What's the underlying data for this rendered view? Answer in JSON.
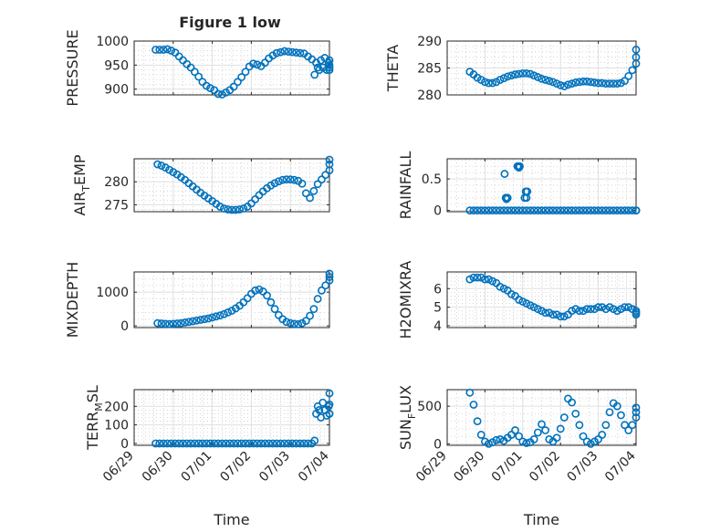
{
  "figure_title": "Figure 1 low",
  "x_tick_labels": [
    "06/29",
    "06/30",
    "07/01",
    "07/02",
    "07/03",
    "07/04"
  ],
  "xlabel": "Time",
  "colors": {
    "marker": "#0072bd",
    "axis": "#262626",
    "grid": "#dfdfdf",
    "background": "#ffffff"
  },
  "chart_data": [
    {
      "id": "pressure",
      "type": "scatter",
      "title": "Figure 1 low",
      "ylabel": "PRESSURE",
      "ylabel_sub": "",
      "ylabel_tail": "",
      "xlabel": "",
      "x_ticks_shown": false,
      "xlim": [
        0,
        5
      ],
      "ylim": [
        888,
        1000
      ],
      "yticks": [
        900,
        950,
        1000
      ],
      "ytick_labels": [
        "900",
        "950",
        "1000"
      ],
      "grid": true,
      "minor_grid": true,
      "x": [
        0.55,
        0.65,
        0.75,
        0.85,
        0.95,
        1.05,
        1.15,
        1.25,
        1.35,
        1.45,
        1.55,
        1.65,
        1.75,
        1.85,
        1.95,
        2.05,
        2.15,
        2.25,
        2.35,
        2.45,
        2.55,
        2.65,
        2.75,
        2.85,
        2.95,
        3.05,
        3.15,
        3.25,
        3.35,
        3.45,
        3.55,
        3.65,
        3.75,
        3.85,
        3.95,
        4.05,
        4.15,
        4.25,
        4.35,
        4.45,
        4.55,
        4.62,
        4.66,
        4.7,
        4.74,
        4.78,
        4.83,
        4.88,
        4.93,
        4.98,
        5.03,
        5.08,
        5.13,
        5.18
      ],
      "y": [
        982,
        982,
        982,
        983,
        980,
        976,
        968,
        960,
        952,
        945,
        936,
        926,
        915,
        907,
        902,
        898,
        890,
        889,
        893,
        898,
        905,
        915,
        925,
        936,
        947,
        953,
        951,
        948,
        955,
        964,
        970,
        975,
        977,
        979,
        978,
        977,
        976,
        975,
        974,
        968,
        962,
        930,
        955,
        945,
        940,
        960,
        945,
        965,
        940,
        955,
        950,
        960,
        945,
        940
      ]
    },
    {
      "id": "theta",
      "type": "scatter",
      "ylabel": "THETA",
      "ylabel_sub": "",
      "ylabel_tail": "",
      "xlabel": "",
      "x_ticks_shown": false,
      "xlim": [
        0,
        5
      ],
      "ylim": [
        280,
        290
      ],
      "yticks": [
        280,
        285,
        290
      ],
      "ytick_labels": [
        "280",
        "285",
        "290"
      ],
      "grid": true,
      "minor_grid": true,
      "x": [
        0.6,
        0.7,
        0.8,
        0.9,
        1.0,
        1.1,
        1.2,
        1.3,
        1.4,
        1.5,
        1.6,
        1.7,
        1.8,
        1.9,
        2.0,
        2.1,
        2.2,
        2.3,
        2.4,
        2.5,
        2.6,
        2.7,
        2.8,
        2.9,
        3.0,
        3.1,
        3.2,
        3.3,
        3.4,
        3.5,
        3.6,
        3.7,
        3.8,
        3.9,
        4.0,
        4.1,
        4.2,
        4.3,
        4.4,
        4.5,
        4.6,
        4.7,
        4.8,
        4.9,
        5.0,
        5.1,
        5.2
      ],
      "y": [
        284.3,
        283.8,
        283.2,
        282.8,
        282.4,
        282.2,
        282.2,
        282.4,
        282.8,
        283.1,
        283.4,
        283.6,
        283.8,
        283.9,
        284.0,
        284.0,
        283.9,
        283.6,
        283.3,
        283.0,
        282.8,
        282.6,
        282.4,
        282.1,
        281.8,
        281.6,
        281.9,
        282.1,
        282.3,
        282.4,
        282.5,
        282.5,
        282.4,
        282.3,
        282.2,
        282.2,
        282.1,
        282.1,
        282.1,
        282.1,
        282.2,
        282.6,
        283.5,
        284.6,
        285.8,
        287.0,
        288.4
      ]
    },
    {
      "id": "air_temp",
      "type": "scatter",
      "ylabel": "AIR",
      "ylabel_sub": "T",
      "ylabel_tail": "EMP",
      "xlabel": "",
      "x_ticks_shown": false,
      "xlim": [
        0,
        5
      ],
      "ylim": [
        273.5,
        285
      ],
      "yticks": [
        275,
        280
      ],
      "ytick_labels": [
        "275",
        "280"
      ],
      "grid": true,
      "minor_grid": true,
      "x": [
        0.6,
        0.7,
        0.8,
        0.9,
        1.0,
        1.1,
        1.2,
        1.3,
        1.4,
        1.5,
        1.6,
        1.7,
        1.8,
        1.9,
        2.0,
        2.1,
        2.2,
        2.3,
        2.4,
        2.5,
        2.6,
        2.7,
        2.8,
        2.9,
        3.0,
        3.1,
        3.2,
        3.3,
        3.4,
        3.5,
        3.6,
        3.7,
        3.8,
        3.9,
        4.0,
        4.1,
        4.2,
        4.3,
        4.4,
        4.5,
        4.6,
        4.7,
        4.8,
        4.9,
        5.0,
        5.1,
        5.2
      ],
      "y": [
        283.8,
        283.5,
        283.1,
        282.6,
        282.1,
        281.6,
        281.0,
        280.4,
        279.7,
        279.0,
        278.3,
        277.6,
        277.0,
        276.4,
        275.8,
        275.2,
        274.6,
        274.2,
        274.0,
        273.9,
        273.9,
        274.0,
        274.2,
        274.6,
        275.3,
        276.2,
        277.1,
        277.9,
        278.6,
        279.2,
        279.7,
        280.1,
        280.4,
        280.5,
        280.5,
        280.4,
        280.2,
        279.6,
        277.5,
        276.5,
        278.0,
        279.5,
        280.5,
        281.5,
        282.5,
        283.8,
        284.8
      ]
    },
    {
      "id": "rainfall",
      "type": "scatter",
      "ylabel": "RAINFALL",
      "ylabel_sub": "",
      "ylabel_tail": "",
      "xlabel": "",
      "x_ticks_shown": false,
      "xlim": [
        0,
        5
      ],
      "ylim": [
        -0.02,
        0.82
      ],
      "yticks": [
        0,
        0.5
      ],
      "ytick_labels": [
        "0",
        "0.5"
      ],
      "grid": true,
      "minor_grid": true,
      "x": [
        0.6,
        0.7,
        0.8,
        0.9,
        1.0,
        1.1,
        1.2,
        1.3,
        1.4,
        1.5,
        1.6,
        1.7,
        1.8,
        1.9,
        2.0,
        2.1,
        2.2,
        2.3,
        2.4,
        2.5,
        2.6,
        2.7,
        2.8,
        2.9,
        3.0,
        3.1,
        3.2,
        3.3,
        3.4,
        3.5,
        3.6,
        3.7,
        3.8,
        3.9,
        4.0,
        4.1,
        4.2,
        4.3,
        4.4,
        4.5,
        4.6,
        4.7,
        4.8,
        4.9,
        5.0,
        5.1,
        5.2,
        1.52,
        1.55,
        1.57,
        1.6,
        1.86,
        1.88,
        1.9,
        1.92,
        2.05,
        2.08,
        2.1,
        2.12
      ],
      "y": [
        0,
        0,
        0,
        0,
        0,
        0,
        0,
        0,
        0,
        0,
        0,
        0,
        0,
        0,
        0,
        0,
        0,
        0,
        0,
        0,
        0,
        0,
        0,
        0,
        0,
        0,
        0,
        0,
        0,
        0,
        0,
        0,
        0,
        0,
        0,
        0,
        0,
        0,
        0,
        0,
        0,
        0,
        0,
        0,
        0,
        0,
        0,
        0.58,
        0.2,
        0.18,
        0.2,
        0.7,
        0.7,
        0.68,
        0.7,
        0.2,
        0.3,
        0.2,
        0.3
      ]
    },
    {
      "id": "mixdepth",
      "type": "scatter",
      "ylabel": "MIXDEPTH",
      "ylabel_sub": "",
      "ylabel_tail": "",
      "xlabel": "",
      "x_ticks_shown": false,
      "xlim": [
        0,
        5
      ],
      "ylim": [
        -50,
        1600
      ],
      "yticks": [
        0,
        1000
      ],
      "ytick_labels": [
        "0",
        "1000"
      ],
      "grid": true,
      "minor_grid": true,
      "x": [
        0.6,
        0.7,
        0.8,
        0.9,
        1.0,
        1.1,
        1.2,
        1.3,
        1.4,
        1.5,
        1.6,
        1.7,
        1.8,
        1.9,
        2.0,
        2.1,
        2.2,
        2.3,
        2.4,
        2.5,
        2.6,
        2.7,
        2.8,
        2.9,
        3.0,
        3.1,
        3.2,
        3.3,
        3.4,
        3.5,
        3.6,
        3.7,
        3.8,
        3.9,
        4.0,
        4.1,
        4.2,
        4.3,
        4.4,
        4.5,
        4.6,
        4.7,
        4.8,
        4.9,
        5.0,
        5.1,
        5.2
      ],
      "y": [
        80,
        70,
        60,
        55,
        60,
        70,
        80,
        100,
        120,
        140,
        160,
        180,
        200,
        220,
        250,
        280,
        310,
        350,
        400,
        450,
        520,
        600,
        700,
        820,
        950,
        1050,
        1080,
        1020,
        900,
        700,
        500,
        320,
        200,
        120,
        80,
        60,
        50,
        80,
        150,
        300,
        500,
        800,
        1050,
        1200,
        1350,
        1450,
        1550
      ]
    },
    {
      "id": "h2omixra",
      "type": "scatter",
      "ylabel": "H2OMIXRA",
      "ylabel_sub": "",
      "ylabel_tail": "",
      "xlabel": "",
      "x_ticks_shown": false,
      "xlim": [
        0,
        5
      ],
      "ylim": [
        3.9,
        6.9
      ],
      "yticks": [
        4,
        5,
        6
      ],
      "ytick_labels": [
        "4",
        "5",
        "6"
      ],
      "grid": true,
      "minor_grid": true,
      "x": [
        0.6,
        0.7,
        0.8,
        0.9,
        1.0,
        1.1,
        1.2,
        1.3,
        1.4,
        1.5,
        1.6,
        1.7,
        1.8,
        1.9,
        2.0,
        2.1,
        2.2,
        2.3,
        2.4,
        2.5,
        2.6,
        2.7,
        2.8,
        2.9,
        3.0,
        3.1,
        3.2,
        3.3,
        3.4,
        3.5,
        3.6,
        3.7,
        3.8,
        3.9,
        4.0,
        4.1,
        4.2,
        4.3,
        4.4,
        4.5,
        4.6,
        4.7,
        4.8,
        4.9,
        5.0,
        5.1,
        5.2
      ],
      "y": [
        6.5,
        6.6,
        6.6,
        6.6,
        6.5,
        6.5,
        6.4,
        6.3,
        6.1,
        6.0,
        5.9,
        5.7,
        5.6,
        5.4,
        5.3,
        5.2,
        5.1,
        5.0,
        4.9,
        4.8,
        4.7,
        4.7,
        4.6,
        4.6,
        4.5,
        4.5,
        4.6,
        4.8,
        4.9,
        4.8,
        4.8,
        4.9,
        4.9,
        4.9,
        5.0,
        5.0,
        4.9,
        5.0,
        4.9,
        4.8,
        4.9,
        5.0,
        5.0,
        4.9,
        4.8,
        4.7,
        4.6
      ]
    },
    {
      "id": "terr_msl",
      "type": "scatter",
      "ylabel": "TERR",
      "ylabel_sub": "M",
      "ylabel_tail": "SL",
      "xlabel": "Time",
      "x_ticks_shown": true,
      "xlim": [
        0,
        5
      ],
      "ylim": [
        -10,
        290
      ],
      "yticks": [
        0,
        100,
        200
      ],
      "ytick_labels": [
        "0",
        "100",
        "200"
      ],
      "grid": true,
      "minor_grid": true,
      "x": [
        0.55,
        0.65,
        0.75,
        0.85,
        0.95,
        1.05,
        1.15,
        1.25,
        1.35,
        1.45,
        1.55,
        1.65,
        1.75,
        1.85,
        1.95,
        2.05,
        2.15,
        2.25,
        2.35,
        2.45,
        2.55,
        2.65,
        2.75,
        2.85,
        2.95,
        3.05,
        3.15,
        3.25,
        3.35,
        3.45,
        3.55,
        3.65,
        3.75,
        3.85,
        3.95,
        4.05,
        4.15,
        4.25,
        4.35,
        4.45,
        4.55,
        4.62,
        4.66,
        4.7,
        4.74,
        4.78,
        4.83,
        4.88,
        4.93,
        4.98,
        5.03,
        5.08,
        5.13,
        5.18
      ],
      "y": [
        0,
        0,
        0,
        0,
        0,
        0,
        0,
        0,
        0,
        0,
        0,
        0,
        0,
        0,
        0,
        0,
        0,
        0,
        0,
        0,
        0,
        0,
        0,
        0,
        0,
        0,
        0,
        0,
        0,
        0,
        0,
        0,
        0,
        0,
        0,
        0,
        0,
        0,
        0,
        0,
        0,
        15,
        160,
        200,
        180,
        140,
        220,
        180,
        150,
        200,
        160,
        210,
        270,
        160
      ]
    },
    {
      "id": "sun_flux",
      "type": "scatter",
      "ylabel": "SUN",
      "ylabel_sub": "F",
      "ylabel_tail": "LUX",
      "xlabel": "Time",
      "x_ticks_shown": true,
      "xlim": [
        0,
        5
      ],
      "ylim": [
        -20,
        720
      ],
      "yticks": [
        0,
        500
      ],
      "ytick_labels": [
        "0",
        "500"
      ],
      "grid": true,
      "minor_grid": true,
      "x": [
        0.6,
        0.7,
        0.8,
        0.9,
        1.0,
        1.1,
        1.2,
        1.3,
        1.4,
        1.5,
        1.6,
        1.7,
        1.8,
        1.9,
        2.0,
        2.1,
        2.2,
        2.3,
        2.4,
        2.5,
        2.6,
        2.7,
        2.8,
        2.9,
        3.0,
        3.1,
        3.2,
        3.3,
        3.4,
        3.5,
        3.6,
        3.7,
        3.8,
        3.9,
        4.0,
        4.1,
        4.2,
        4.3,
        4.4,
        4.5,
        4.6,
        4.7,
        4.8,
        4.9,
        5.0,
        5.1,
        5.2
      ],
      "y": [
        680,
        520,
        300,
        120,
        30,
        0,
        20,
        50,
        60,
        40,
        80,
        120,
        180,
        100,
        30,
        10,
        20,
        60,
        150,
        260,
        180,
        60,
        30,
        80,
        200,
        350,
        600,
        550,
        400,
        250,
        100,
        30,
        0,
        30,
        60,
        120,
        250,
        420,
        540,
        500,
        380,
        250,
        180,
        250,
        350,
        420,
        480
      ]
    }
  ]
}
